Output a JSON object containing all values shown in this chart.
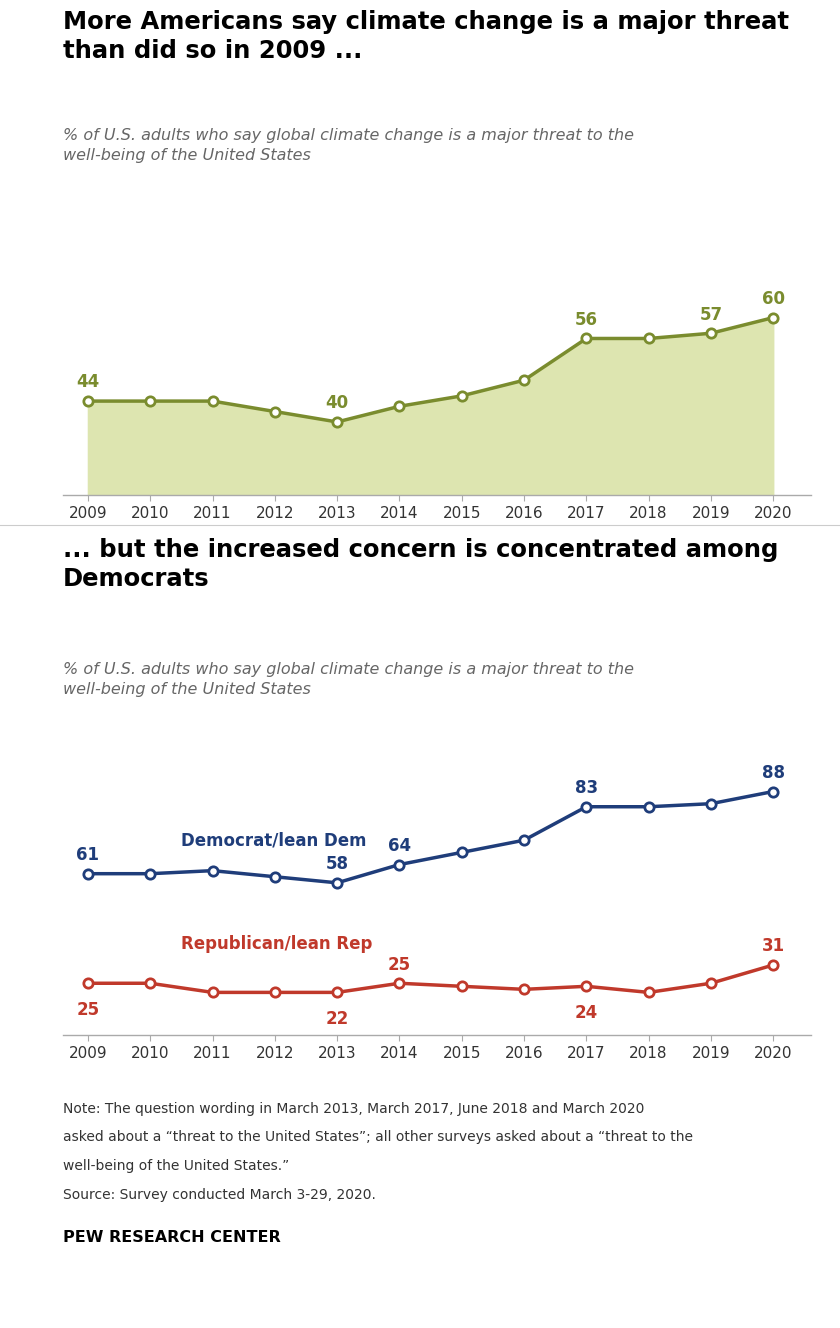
{
  "chart1_title": "More Americans say climate change is a major threat\nthan did so in 2009 ...",
  "chart2_title": "... but the increased concern is concentrated among\nDemocrats",
  "subtitle": "% of U.S. adults who say global climate change is a major threat to the\nwell-being of the United States",
  "overall_years": [
    2009,
    2010,
    2011,
    2012,
    2013,
    2014,
    2015,
    2016,
    2017,
    2018,
    2019,
    2020
  ],
  "overall_values": [
    44,
    44,
    44,
    42,
    40,
    43,
    45,
    48,
    56,
    56,
    57,
    60
  ],
  "dem_years": [
    2009,
    2010,
    2011,
    2012,
    2013,
    2014,
    2015,
    2016,
    2017,
    2018,
    2019,
    2020
  ],
  "dem_values": [
    61,
    61,
    62,
    60,
    58,
    64,
    68,
    72,
    83,
    83,
    84,
    88
  ],
  "rep_years": [
    2009,
    2010,
    2011,
    2012,
    2013,
    2014,
    2015,
    2016,
    2017,
    2018,
    2019,
    2020
  ],
  "rep_values": [
    25,
    25,
    22,
    22,
    22,
    25,
    24,
    23,
    24,
    22,
    25,
    31
  ],
  "overall_color": "#7a8c2e",
  "overall_fill": "#dde5b0",
  "dem_color": "#1f3d7a",
  "rep_color": "#c0392b",
  "marker_fill": "#ffffff",
  "note_line1": "Note: The question wording in March 2013, March 2017, June 2018 and March 2020",
  "note_line2": "asked about a “threat to the United States”; all other surveys asked about a “threat to the",
  "note_line3": "well-being of the United States.”",
  "note_line4": "Source: Survey conducted March 3-29, 2020.",
  "source_label": "PEW RESEARCH CENTER",
  "chart1_labeled_years": [
    2009,
    2013,
    2017,
    2019,
    2020
  ],
  "chart1_labeled_values": [
    44,
    40,
    56,
    57,
    60
  ],
  "dem_labeled_years": [
    2009,
    2013,
    2014,
    2017,
    2020
  ],
  "dem_labeled_values": [
    61,
    58,
    64,
    83,
    88
  ],
  "rep_labeled_years": [
    2009,
    2013,
    2014,
    2017,
    2020
  ],
  "rep_labeled_values": [
    25,
    22,
    25,
    24,
    31
  ]
}
